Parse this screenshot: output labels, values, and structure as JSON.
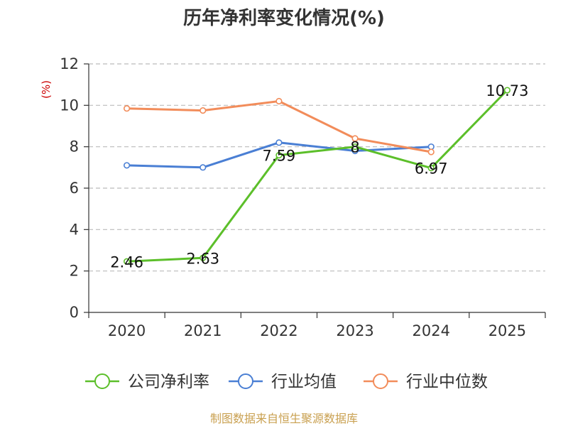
{
  "chart_data": {
    "type": "line",
    "title": "历年净利率变化情况(%)",
    "unit_label": "(%)",
    "categories": [
      "2020",
      "2021",
      "2022",
      "2023",
      "2024",
      "2025"
    ],
    "ylim": [
      0,
      12
    ],
    "yticks": [
      0,
      2,
      4,
      6,
      8,
      10,
      12
    ],
    "grid": true,
    "legend_position": "bottom",
    "series": [
      {
        "name": "公司净利率",
        "color": "#5cbf2a",
        "values": [
          2.46,
          2.63,
          7.59,
          8,
          6.97,
          10.73
        ],
        "labels": [
          "2.46",
          "2.63",
          "7.59",
          "8",
          "6.97",
          "10.73"
        ]
      },
      {
        "name": "行业均值",
        "color": "#4a7fd4",
        "values": [
          7.1,
          7.0,
          8.2,
          7.8,
          8.0,
          null
        ],
        "labels": []
      },
      {
        "name": "行业中位数",
        "color": "#f28c5a",
        "values": [
          9.85,
          9.75,
          10.2,
          8.4,
          7.75,
          null
        ],
        "labels": []
      }
    ]
  },
  "source": "制图数据来自恒生聚源数据库"
}
